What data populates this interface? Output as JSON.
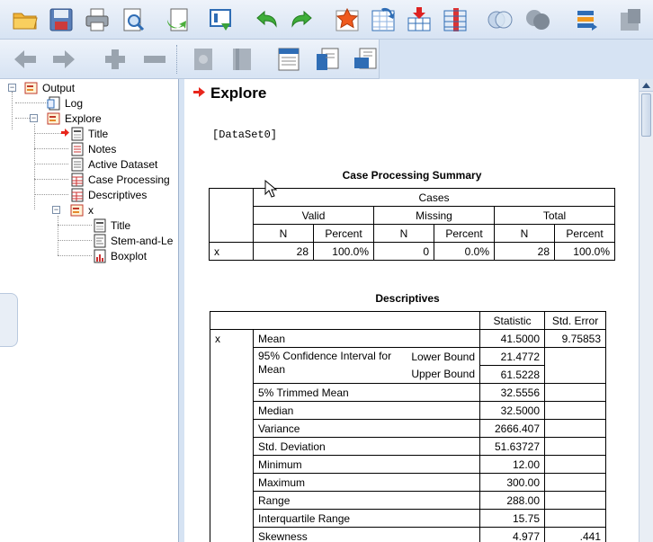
{
  "toolbar1": {
    "icons": [
      "open-folder-icon",
      "save-icon",
      "print-icon",
      "print-preview-icon",
      "export-icon",
      "recall-dialog-icon",
      "undo-icon",
      "redo-icon",
      "goto-case-icon",
      "goto-variable-icon",
      "insert-case-icon",
      "variables-icon",
      "venn-icon",
      "grey-circles-icon",
      "value-labels-icon",
      "gear-grey-icon"
    ]
  },
  "toolbar2": {
    "icons": [
      "back-arrow-icon",
      "forward-arrow-icon",
      "expand-plus-icon",
      "collapse-minus-icon",
      "show-icon",
      "hide-icon",
      "insert-heading-icon",
      "insert-title-icon",
      "insert-text-icon"
    ]
  },
  "outline": {
    "root": "Output",
    "log": "Log",
    "explore": "Explore",
    "title": "Title",
    "notes": "Notes",
    "active_dataset": "Active Dataset",
    "case_processing": "Case Processing",
    "descriptives": "Descriptives",
    "x": "x",
    "x_title": "Title",
    "x_stem": "Stem-and-Le",
    "x_boxplot": "Boxplot"
  },
  "content": {
    "heading": "Explore",
    "dataset": "[DataSet0]",
    "cps": {
      "title": "Case Processing Summary",
      "cases": "Cases",
      "groups": [
        "Valid",
        "Missing",
        "Total"
      ],
      "n": "N",
      "percent": "Percent",
      "row_label": "x",
      "values": [
        "28",
        "100.0%",
        "0",
        "0.0%",
        "28",
        "100.0%"
      ]
    },
    "desc": {
      "title": "Descriptives",
      "col_stat": "Statistic",
      "col_err": "Std. Error",
      "var": "x",
      "rows": [
        {
          "label": "Mean",
          "sub": "",
          "stat": "41.5000",
          "err": "9.75853"
        },
        {
          "label": "95% Confidence Interval for Mean",
          "sub": "Lower Bound",
          "stat": "21.4772",
          "err": ""
        },
        {
          "label": "",
          "sub": "Upper Bound",
          "stat": "61.5228",
          "err": ""
        },
        {
          "label": "5% Trimmed Mean",
          "sub": "",
          "stat": "32.5556",
          "err": ""
        },
        {
          "label": "Median",
          "sub": "",
          "stat": "32.5000",
          "err": ""
        },
        {
          "label": "Variance",
          "sub": "",
          "stat": "2666.407",
          "err": ""
        },
        {
          "label": "Std. Deviation",
          "sub": "",
          "stat": "51.63727",
          "err": ""
        },
        {
          "label": "Minimum",
          "sub": "",
          "stat": "12.00",
          "err": ""
        },
        {
          "label": "Maximum",
          "sub": "",
          "stat": "300.00",
          "err": ""
        },
        {
          "label": "Range",
          "sub": "",
          "stat": "288.00",
          "err": ""
        },
        {
          "label": "Interquartile Range",
          "sub": "",
          "stat": "15.75",
          "err": ""
        },
        {
          "label": "Skewness",
          "sub": "",
          "stat": "4.977",
          "err": ".441"
        }
      ]
    }
  },
  "colors": {
    "accent_red": "#e8261c",
    "toolbar_blue": "#2f6db5"
  }
}
